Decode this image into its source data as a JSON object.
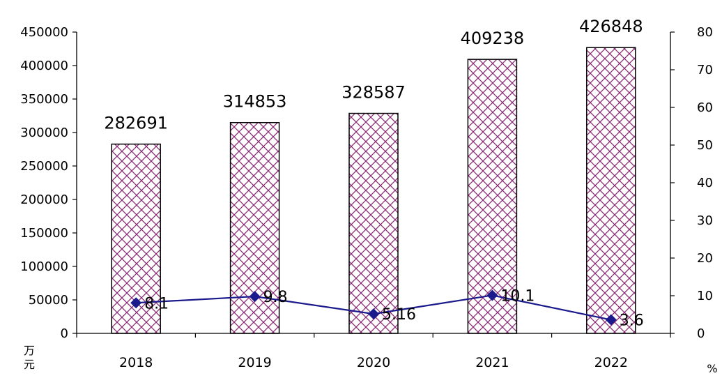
{
  "chart_data": {
    "type": "bar",
    "categories": [
      "2018",
      "2019",
      "2020",
      "2021",
      "2022"
    ],
    "series": [
      {
        "values": [
          282691,
          314853,
          328587,
          409238,
          426848
        ],
        "axis": "left",
        "type": "bar"
      },
      {
        "values": [
          8.1,
          9.8,
          5.16,
          10.1,
          3.6
        ],
        "axis": "right",
        "type": "line"
      }
    ],
    "y_left": {
      "unit": "万元",
      "ylim": [
        0,
        450000
      ],
      "ticks": [
        "0",
        "50000",
        "100000",
        "150000",
        "200000",
        "250000",
        "300000",
        "350000",
        "400000",
        "450000"
      ]
    },
    "y_right": {
      "unit": "%",
      "ylim": [
        0,
        80
      ],
      "ticks": [
        "0",
        "10",
        "20",
        "30",
        "40",
        "50",
        "60",
        "70",
        "80"
      ]
    },
    "bar_labels": [
      "282691",
      "314853",
      "328587",
      "409238",
      "426848"
    ],
    "line_labels": [
      "8.1",
      "9.8",
      "5.16",
      "10.1",
      "3.6"
    ],
    "grid": false,
    "legend": "none",
    "colors": {
      "bar_pattern": "#8a2a76",
      "line": "#1a1a8c",
      "axis": "#000000"
    }
  }
}
